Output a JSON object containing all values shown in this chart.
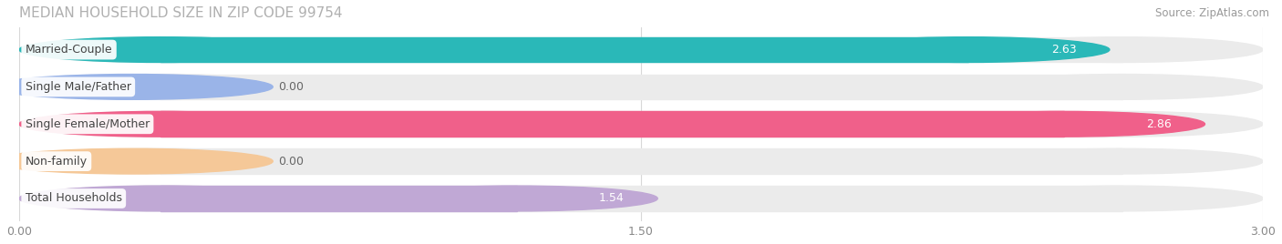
{
  "title": "MEDIAN HOUSEHOLD SIZE IN ZIP CODE 99754",
  "source": "Source: ZipAtlas.com",
  "categories": [
    "Married-Couple",
    "Single Male/Father",
    "Single Female/Mother",
    "Non-family",
    "Total Households"
  ],
  "values": [
    2.63,
    0.0,
    2.86,
    0.0,
    1.54
  ],
  "bar_colors": [
    "#2ab8b8",
    "#9ab4e8",
    "#f0608a",
    "#f5c898",
    "#c0a8d5"
  ],
  "bar_bg_color": "#ebebeb",
  "xlim": [
    0,
    3.0
  ],
  "xtick_labels": [
    "0.00",
    "1.50",
    "3.00"
  ],
  "xtick_vals": [
    0.0,
    1.5,
    3.0
  ],
  "value_label_color_inside": "#ffffff",
  "value_label_color_outside": "#666666",
  "title_color": "#b0b0b0",
  "source_color": "#999999",
  "background_color": "#ffffff",
  "bar_height": 0.68,
  "bar_gap": 1.0
}
